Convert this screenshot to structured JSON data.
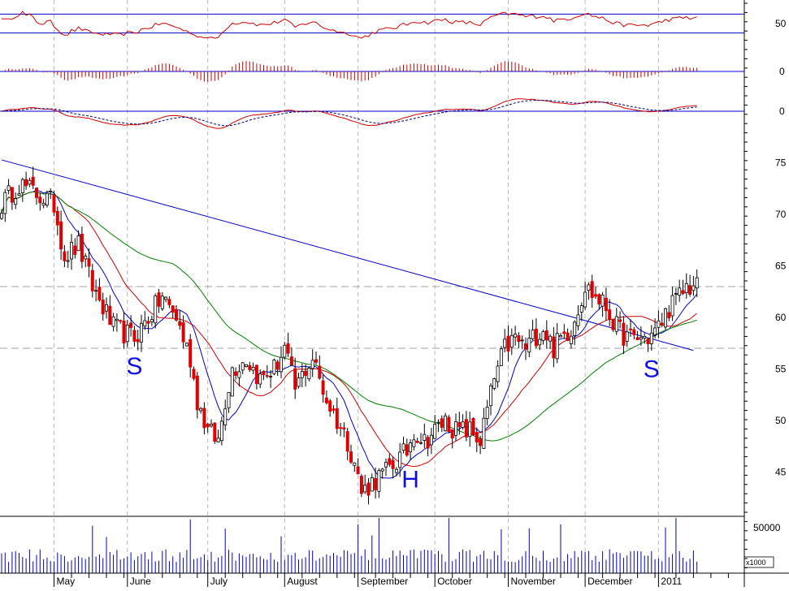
{
  "chart_data": {
    "type": "candlestick",
    "title": "",
    "price_axis": {
      "ylim": [
        41,
        79
      ],
      "ticks": [
        45,
        50,
        55,
        60,
        65,
        70,
        75
      ],
      "reference_lines": [
        57,
        63
      ]
    },
    "rsi_panel": {
      "ylim": [
        0,
        100
      ],
      "ticks": [
        50
      ],
      "guides": [
        70,
        30
      ]
    },
    "histogram_panel": {
      "ticks": [
        0
      ]
    },
    "macd_panel": {
      "ticks": [
        0
      ]
    },
    "volume_panel": {
      "ticks": [
        50000
      ],
      "unit_label": "x1000"
    },
    "months": [
      {
        "label": "May",
        "index": 15
      },
      {
        "label": "June",
        "index": 36
      },
      {
        "label": "July",
        "index": 59
      },
      {
        "label": "August",
        "index": 81
      },
      {
        "label": "September",
        "index": 102
      },
      {
        "label": "October",
        "index": 124
      },
      {
        "label": "November",
        "index": 145
      },
      {
        "label": "December",
        "index": 167
      },
      {
        "label": "2011",
        "index": 188
      }
    ],
    "annotations": [
      {
        "text": "S",
        "index": 38,
        "price": 54.5
      },
      {
        "text": "H",
        "index": 117,
        "price": 43.5
      },
      {
        "text": "S",
        "index": 186,
        "price": 54.2
      }
    ],
    "trendline": {
      "from": [
        0,
        75.3
      ],
      "to": [
        198,
        56.8
      ]
    },
    "key_closes": [
      [
        0,
        71
      ],
      [
        5,
        73
      ],
      [
        10,
        72
      ],
      [
        15,
        71
      ],
      [
        18,
        66
      ],
      [
        22,
        67
      ],
      [
        26,
        63
      ],
      [
        32,
        59
      ],
      [
        38,
        58
      ],
      [
        42,
        60
      ],
      [
        46,
        62
      ],
      [
        50,
        60
      ],
      [
        54,
        56
      ],
      [
        56,
        52
      ],
      [
        59,
        49
      ],
      [
        62,
        48
      ],
      [
        64,
        52
      ],
      [
        66,
        55
      ],
      [
        70,
        56
      ],
      [
        74,
        54
      ],
      [
        78,
        55
      ],
      [
        81,
        57
      ],
      [
        84,
        53
      ],
      [
        87,
        55
      ],
      [
        89,
        56
      ],
      [
        91,
        54
      ],
      [
        93,
        52
      ],
      [
        96,
        50
      ],
      [
        99,
        48
      ],
      [
        101,
        46
      ],
      [
        103,
        43
      ],
      [
        106,
        44
      ],
      [
        110,
        45
      ],
      [
        113,
        46
      ],
      [
        116,
        47
      ],
      [
        118,
        49
      ],
      [
        121,
        48
      ],
      [
        124,
        49
      ],
      [
        127,
        50
      ],
      [
        130,
        49
      ],
      [
        134,
        49
      ],
      [
        137,
        48
      ],
      [
        139,
        51
      ],
      [
        141,
        54
      ],
      [
        144,
        57
      ],
      [
        147,
        58
      ],
      [
        150,
        57
      ],
      [
        152,
        58
      ],
      [
        155,
        59
      ],
      [
        158,
        57
      ],
      [
        160,
        58
      ],
      [
        163,
        59
      ],
      [
        165,
        61
      ],
      [
        167,
        63
      ],
      [
        170,
        62
      ],
      [
        173,
        61
      ],
      [
        176,
        59
      ],
      [
        179,
        58
      ],
      [
        182,
        58
      ],
      [
        185,
        58
      ],
      [
        188,
        59
      ],
      [
        191,
        61
      ],
      [
        194,
        62
      ],
      [
        196,
        63
      ]
    ],
    "indicator_colors": {
      "up_candle": "#ffffff",
      "down_candle": "#e00000",
      "ma_short": "#0000cc",
      "ma_medium": "#d00000",
      "ma_long": "#008000",
      "trendline": "#0000cc",
      "annotation": "#1010e0",
      "volume": "#0000cc"
    }
  }
}
